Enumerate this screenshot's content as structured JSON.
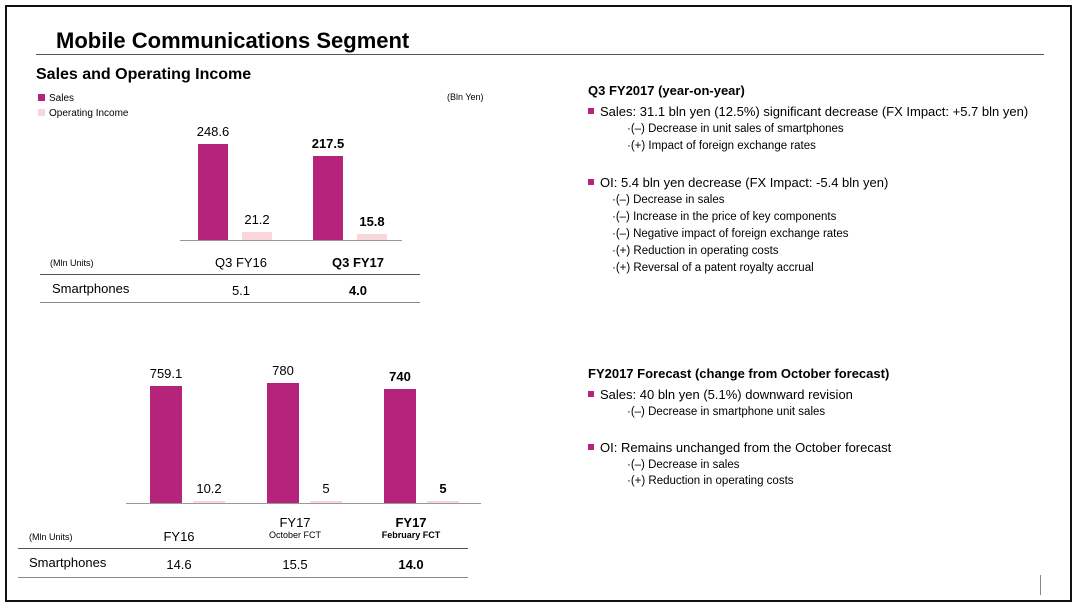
{
  "page": {
    "title": "Mobile Communications Segment",
    "subtitle": "Sales and Operating Income"
  },
  "legend": {
    "sales": "Sales",
    "operating_income": "Operating Income",
    "unit": "(Bln Yen)"
  },
  "colors": {
    "sales": "#b5247a",
    "operating_income": "#f9d6dc",
    "accent": "#b5247a"
  },
  "chart_data": [
    {
      "type": "bar",
      "categories": [
        "Q3 FY16",
        "Q3 FY17"
      ],
      "series": [
        {
          "name": "Sales",
          "values": [
            248.6,
            217.5
          ]
        },
        {
          "name": "Operating Income",
          "values": [
            21.2,
            15.8
          ]
        }
      ],
      "value_labels": {
        "sales": [
          "248.6",
          "217.5"
        ],
        "operating_income": [
          "21.2",
          "15.8"
        ]
      },
      "bold_category_index": 1,
      "ylim": [
        0,
        260
      ]
    },
    {
      "type": "bar",
      "categories": [
        "FY16",
        "FY17",
        "FY17"
      ],
      "category_sublabels": [
        "",
        "October FCT",
        "February FCT"
      ],
      "series": [
        {
          "name": "Sales",
          "values": [
            759.1,
            780,
            740
          ]
        },
        {
          "name": "Operating Income",
          "values": [
            10.2,
            5,
            5
          ]
        }
      ],
      "value_labels": {
        "sales": [
          "759.1",
          "780",
          "740"
        ],
        "operating_income": [
          "10.2",
          "5",
          "5"
        ]
      },
      "bold_category_index": 2,
      "ylim": [
        0,
        800
      ]
    }
  ],
  "table1": {
    "units_label": "(Mln Units)",
    "row_label": "Smartphones",
    "values": [
      "5.1",
      "4.0"
    ]
  },
  "table2": {
    "units_label": "(Mln Units)",
    "row_label": "Smartphones",
    "values": [
      "14.6",
      "15.5",
      "14.0"
    ]
  },
  "q3": {
    "heading": "Q3 FY2017 (year-on-year)",
    "sales_bullet": "Sales: 31.1 bln yen (12.5%) significant decrease (FX Impact: +5.7 bln yen)",
    "sales_items": [
      "·(–) Decrease in unit sales of smartphones",
      "·(+) Impact of foreign exchange rates"
    ],
    "oi_bullet": "OI: 5.4 bln yen decrease (FX Impact: -5.4 bln yen)",
    "oi_items": [
      "·(–) Decrease in sales",
      "·(–) Increase in the price of key components",
      "·(–) Negative impact of foreign exchange rates",
      "·(+) Reduction in operating costs",
      "·(+) Reversal of a patent royalty accrual"
    ]
  },
  "fy": {
    "heading": "FY2017 Forecast",
    "heading_suffix": " (change from October forecast)",
    "sales_bullet": "Sales: 40 bln yen (5.1%) downward revision",
    "sales_items": [
      "·(–)  Decrease in smartphone unit sales"
    ],
    "oi_bullet": "OI: Remains unchanged from the October forecast",
    "oi_items": [
      "·(–)  Decrease in sales",
      "·(+)  Reduction in operating costs"
    ]
  }
}
